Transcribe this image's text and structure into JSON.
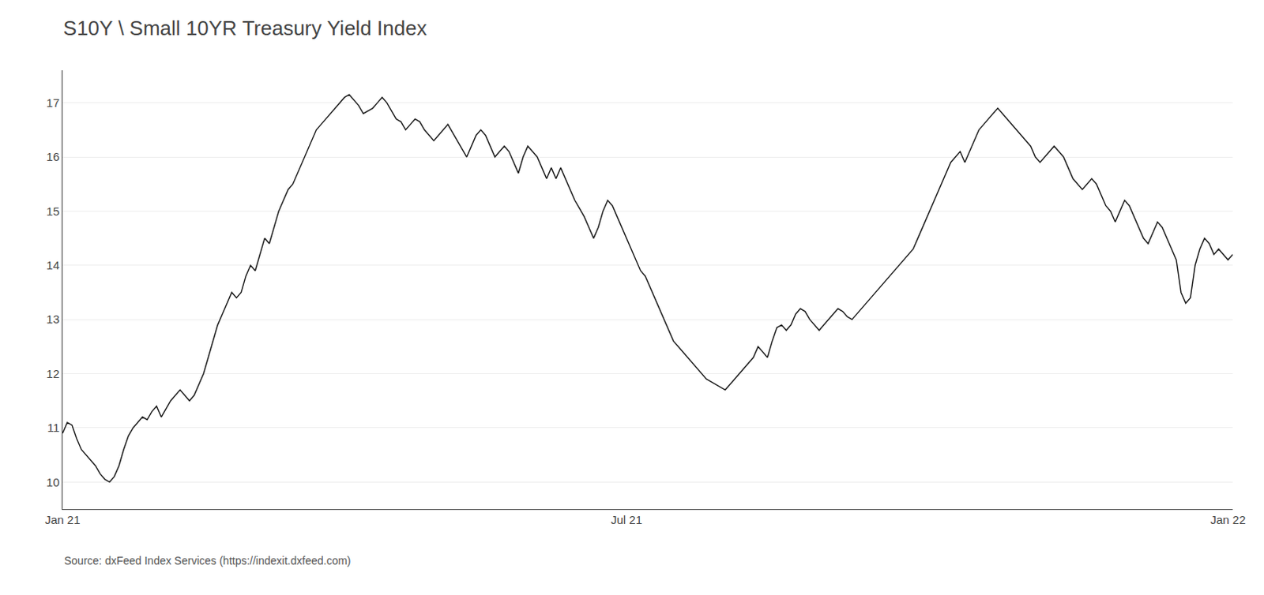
{
  "chart_data": {
    "type": "line",
    "title": "S10Y \\ Small 10YR Treasury Yield Index",
    "annotations": [
      "Source: dxFeed Index Services (https://indexit.dxfeed.com)"
    ],
    "color": "#1a1a1a",
    "ylim": [
      9.5,
      17.6
    ],
    "yticks": [
      10,
      11,
      12,
      13,
      14,
      15,
      16,
      17
    ],
    "grid": true,
    "categories": [
      "Jan 21",
      null,
      null,
      null,
      null,
      null,
      null,
      null,
      null,
      null,
      null,
      null,
      null,
      null,
      null,
      null,
      null,
      null,
      null,
      null,
      null,
      null,
      null,
      null,
      null,
      null,
      null,
      null,
      null,
      null,
      null,
      null,
      null,
      null,
      null,
      null,
      null,
      null,
      null,
      null,
      null,
      null,
      null,
      null,
      null,
      null,
      null,
      null,
      null,
      null,
      null,
      null,
      null,
      null,
      null,
      null,
      null,
      null,
      null,
      null,
      null,
      null,
      null,
      null,
      null,
      null,
      null,
      null,
      null,
      null,
      null,
      null,
      null,
      null,
      null,
      null,
      null,
      null,
      null,
      null,
      null,
      null,
      null,
      null,
      null,
      null,
      null,
      null,
      null,
      null,
      null,
      null,
      null,
      null,
      null,
      null,
      null,
      null,
      null,
      null,
      null,
      null,
      null,
      null,
      null,
      null,
      null,
      null,
      null,
      null,
      null,
      null,
      null,
      null,
      null,
      null,
      null,
      null,
      null,
      null,
      "Jul 21",
      null,
      null,
      null,
      null,
      null,
      null,
      null,
      null,
      null,
      null,
      null,
      null,
      null,
      null,
      null,
      null,
      null,
      null,
      null,
      null,
      null,
      null,
      null,
      null,
      null,
      null,
      null,
      null,
      null,
      null,
      null,
      null,
      null,
      null,
      null,
      null,
      null,
      null,
      null,
      null,
      null,
      null,
      null,
      null,
      null,
      null,
      null,
      null,
      null,
      null,
      null,
      null,
      null,
      null,
      null,
      null,
      null,
      null,
      null,
      null,
      null,
      null,
      null,
      null,
      null,
      null,
      null,
      null,
      null,
      null,
      null,
      null,
      null,
      null,
      null,
      null,
      null,
      null,
      null,
      null,
      null,
      null,
      null,
      null,
      null,
      null,
      null,
      null,
      null,
      null,
      null,
      null,
      null,
      null,
      null,
      null,
      null,
      null,
      null,
      null,
      null,
      null,
      null,
      null,
      null,
      null,
      null,
      null,
      null,
      null,
      null,
      null,
      null,
      null,
      null,
      null,
      null,
      null,
      null,
      null,
      null,
      null,
      null,
      null,
      null,
      null,
      null,
      "Jan 22",
      null
    ],
    "values": [
      10.9,
      11.1,
      11.05,
      10.8,
      10.6,
      10.5,
      10.4,
      10.3,
      10.15,
      10.05,
      10.0,
      10.1,
      10.3,
      10.6,
      10.85,
      11.0,
      11.1,
      11.2,
      11.15,
      11.3,
      11.4,
      11.2,
      11.35,
      11.5,
      11.6,
      11.7,
      11.6,
      11.5,
      11.6,
      11.8,
      12.0,
      12.3,
      12.6,
      12.9,
      13.1,
      13.3,
      13.5,
      13.4,
      13.5,
      13.8,
      14.0,
      13.9,
      14.2,
      14.5,
      14.4,
      14.7,
      15.0,
      15.2,
      15.4,
      15.5,
      15.7,
      15.9,
      16.1,
      16.3,
      16.5,
      16.6,
      16.7,
      16.8,
      16.9,
      17.0,
      17.1,
      17.15,
      17.05,
      16.95,
      16.8,
      16.85,
      16.9,
      17.0,
      17.1,
      17.0,
      16.85,
      16.7,
      16.65,
      16.5,
      16.6,
      16.7,
      16.65,
      16.5,
      16.4,
      16.3,
      16.4,
      16.5,
      16.6,
      16.45,
      16.3,
      16.15,
      16.0,
      16.2,
      16.4,
      16.5,
      16.4,
      16.2,
      16.0,
      16.1,
      16.2,
      16.1,
      15.9,
      15.7,
      16.0,
      16.2,
      16.1,
      16.0,
      15.8,
      15.6,
      15.8,
      15.6,
      15.8,
      15.6,
      15.4,
      15.2,
      15.05,
      14.9,
      14.7,
      14.5,
      14.7,
      15.0,
      15.2,
      15.1,
      14.9,
      14.7,
      14.5,
      14.3,
      14.1,
      13.9,
      13.8,
      13.6,
      13.4,
      13.2,
      13.0,
      12.8,
      12.6,
      12.5,
      12.4,
      12.3,
      12.2,
      12.1,
      12.0,
      11.9,
      11.85,
      11.8,
      11.75,
      11.7,
      11.8,
      11.9,
      12.0,
      12.1,
      12.2,
      12.3,
      12.5,
      12.4,
      12.3,
      12.6,
      12.85,
      12.9,
      12.8,
      12.9,
      13.1,
      13.2,
      13.15,
      13.0,
      12.9,
      12.8,
      12.9,
      13.0,
      13.1,
      13.2,
      13.15,
      13.05,
      13.0,
      13.1,
      13.2,
      13.3,
      13.4,
      13.5,
      13.6,
      13.7,
      13.8,
      13.9,
      14.0,
      14.1,
      14.2,
      14.3,
      14.5,
      14.7,
      14.9,
      15.1,
      15.3,
      15.5,
      15.7,
      15.9,
      16.0,
      16.1,
      15.9,
      16.1,
      16.3,
      16.5,
      16.6,
      16.7,
      16.8,
      16.9,
      16.8,
      16.7,
      16.6,
      16.5,
      16.4,
      16.3,
      16.2,
      16.0,
      15.9,
      16.0,
      16.1,
      16.2,
      16.1,
      16.0,
      15.8,
      15.6,
      15.5,
      15.4,
      15.5,
      15.6,
      15.5,
      15.3,
      15.1,
      15.0,
      14.8,
      15.0,
      15.2,
      15.1,
      14.9,
      14.7,
      14.5,
      14.4,
      14.6,
      14.8,
      14.7,
      14.5,
      14.3,
      14.1,
      13.5,
      13.3,
      13.4,
      14.0,
      14.3,
      14.5,
      14.4,
      14.2,
      14.3,
      14.2,
      14.1,
      14.2
    ]
  }
}
